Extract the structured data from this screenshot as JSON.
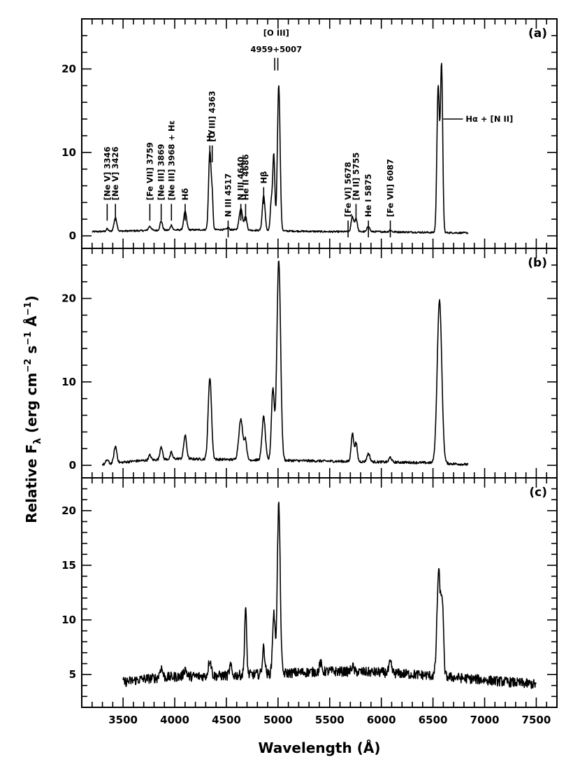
{
  "chart_data": {
    "type": "line",
    "xlabel": "Wavelength (Å)",
    "ylabel": "Relative F_λ (erg cm^-2 s^-1 Å^-1)",
    "xlim": [
      3100,
      7700
    ],
    "x_ticks": [
      3500,
      4000,
      4500,
      5000,
      5500,
      6000,
      6500,
      7000,
      7500
    ],
    "x_tick_labels": [
      "3500",
      "4000",
      "4500",
      "5000",
      "5500",
      "6000",
      "6500",
      "7000",
      "7500"
    ],
    "panels": [
      {
        "label": "(a)",
        "ylim": [
          -1.5,
          26
        ],
        "y_ticks": [
          0,
          10,
          20
        ],
        "y_tick_labels": [
          "0",
          "10",
          "20"
        ],
        "continuum": [
          [
            3200,
            0.5
          ],
          [
            3600,
            0.6
          ],
          [
            4000,
            0.7
          ],
          [
            4500,
            0.75
          ],
          [
            5000,
            0.6
          ],
          [
            5500,
            0.5
          ],
          [
            6000,
            0.5
          ],
          [
            6500,
            0.4
          ],
          [
            6840,
            0.35
          ]
        ],
        "x_end": 6840,
        "noise": 0.1,
        "lines": [
          {
            "x": 3346,
            "h": 0.3,
            "w": 10
          },
          {
            "x": 3426,
            "h": 1.6,
            "w": 14
          },
          {
            "x": 3759,
            "h": 0.5,
            "w": 14
          },
          {
            "x": 3869,
            "h": 1.1,
            "w": 12
          },
          {
            "x": 3968,
            "h": 0.6,
            "w": 10
          },
          {
            "x": 4101,
            "h": 2.2,
            "w": 14
          },
          {
            "x": 4340,
            "h": 9.5,
            "w": 12
          },
          {
            "x": 4363,
            "h": 3.5,
            "w": 8
          },
          {
            "x": 4517,
            "h": 0.25,
            "w": 10
          },
          {
            "x": 4640,
            "h": 2.6,
            "w": 16
          },
          {
            "x": 4686,
            "h": 1.6,
            "w": 12
          },
          {
            "x": 4861,
            "h": 4.2,
            "w": 13
          },
          {
            "x": 4935,
            "h": 3.5,
            "w": 10
          },
          {
            "x": 4959,
            "h": 9.0,
            "w": 10
          },
          {
            "x": 5007,
            "h": 17.5,
            "w": 13
          },
          {
            "x": 5720,
            "h": 1.8,
            "w": 12
          },
          {
            "x": 5755,
            "h": 1.6,
            "w": 12
          },
          {
            "x": 5875,
            "h": 0.7,
            "w": 12
          },
          {
            "x": 6087,
            "h": 0.25,
            "w": 10
          },
          {
            "x": 6550,
            "h": 17.5,
            "w": 12
          },
          {
            "x": 6583,
            "h": 20.0,
            "w": 11
          }
        ]
      },
      {
        "label": "(b)",
        "ylim": [
          -1.5,
          26
        ],
        "y_ticks": [
          0,
          10,
          20
        ],
        "y_tick_labels": [
          "0",
          "10",
          "20"
        ],
        "continuum": [
          [
            3300,
            0.1
          ],
          [
            3600,
            0.5
          ],
          [
            4000,
            0.8
          ],
          [
            4500,
            0.7
          ],
          [
            5000,
            0.6
          ],
          [
            5500,
            0.5
          ],
          [
            6000,
            0.4
          ],
          [
            6500,
            0.3
          ],
          [
            6840,
            0.1
          ]
        ],
        "x_end": 6840,
        "noise": 0.15,
        "lines": [
          {
            "x": 3346,
            "h": 0.5,
            "w": 12
          },
          {
            "x": 3426,
            "h": 2.0,
            "w": 14
          },
          {
            "x": 3759,
            "h": 0.6,
            "w": 12
          },
          {
            "x": 3869,
            "h": 1.6,
            "w": 12
          },
          {
            "x": 3968,
            "h": 0.8,
            "w": 10
          },
          {
            "x": 4101,
            "h": 2.8,
            "w": 14
          },
          {
            "x": 4340,
            "h": 9.8,
            "w": 16
          },
          {
            "x": 4640,
            "h": 4.8,
            "w": 20
          },
          {
            "x": 4686,
            "h": 2.2,
            "w": 12
          },
          {
            "x": 4861,
            "h": 5.2,
            "w": 16
          },
          {
            "x": 4950,
            "h": 8.5,
            "w": 14
          },
          {
            "x": 5007,
            "h": 24.0,
            "w": 18
          },
          {
            "x": 5720,
            "h": 3.4,
            "w": 12
          },
          {
            "x": 5755,
            "h": 2.2,
            "w": 12
          },
          {
            "x": 5875,
            "h": 1.0,
            "w": 14
          },
          {
            "x": 6087,
            "h": 0.6,
            "w": 12
          },
          {
            "x": 6563,
            "h": 19.5,
            "w": 22
          }
        ]
      },
      {
        "label": "(c)",
        "ylim": [
          2,
          23
        ],
        "y_ticks": [
          5,
          10,
          15,
          20
        ],
        "y_tick_labels": [
          "5",
          "10",
          "15",
          "20"
        ],
        "continuum": [
          [
            3500,
            4.3
          ],
          [
            3700,
            4.6
          ],
          [
            4000,
            4.8
          ],
          [
            4500,
            4.9
          ],
          [
            5000,
            5.1
          ],
          [
            5500,
            5.3
          ],
          [
            6000,
            5.2
          ],
          [
            6500,
            4.9
          ],
          [
            7000,
            4.5
          ],
          [
            7500,
            4.1
          ]
        ],
        "x_end": 7500,
        "noise": 0.45,
        "lines": [
          {
            "x": 3869,
            "h": 0.9,
            "w": 14
          },
          {
            "x": 4101,
            "h": 0.7,
            "w": 14
          },
          {
            "x": 4340,
            "h": 1.5,
            "w": 14
          },
          {
            "x": 4540,
            "h": 0.9,
            "w": 10
          },
          {
            "x": 4686,
            "h": 6.0,
            "w": 10
          },
          {
            "x": 4861,
            "h": 2.4,
            "w": 12
          },
          {
            "x": 4959,
            "h": 5.5,
            "w": 12
          },
          {
            "x": 5007,
            "h": 15.5,
            "w": 14
          },
          {
            "x": 5411,
            "h": 0.8,
            "w": 10
          },
          {
            "x": 5720,
            "h": 0.5,
            "w": 12
          },
          {
            "x": 6087,
            "h": 0.9,
            "w": 12
          },
          {
            "x": 6555,
            "h": 9.5,
            "w": 16
          },
          {
            "x": 6590,
            "h": 6.5,
            "w": 12
          }
        ]
      }
    ],
    "annotations": [
      {
        "text": "[Ne V] 3346",
        "x": 3346,
        "y": 4
      },
      {
        "text": "[Ne V] 3426",
        "x": 3426,
        "y": 4
      },
      {
        "text": "[Fe VII] 3759",
        "x": 3759,
        "y": 4
      },
      {
        "text": "[Ne III] 3869",
        "x": 3869,
        "y": 4
      },
      {
        "text": "[Ne III] 3968 + Hε",
        "x": 3968,
        "y": 4
      },
      {
        "text": "Hδ",
        "x": 4101,
        "y": 4
      },
      {
        "text": "Hγ",
        "x": 4340,
        "y": 11
      },
      {
        "text": "[O III] 4363",
        "x": 4363,
        "y": 11
      },
      {
        "text": "N III 4517",
        "x": 4517,
        "y": 2
      },
      {
        "text": "N III 4640",
        "x": 4640,
        "y": 4
      },
      {
        "text": "He II 4686",
        "x": 4686,
        "y": 4
      },
      {
        "text": "Hβ",
        "x": 4861,
        "y": 6
      },
      {
        "text": "[O III]",
        "x": 4983,
        "y": 24
      },
      {
        "text": "4959+5007",
        "x": 4983,
        "y": 22
      },
      {
        "text": "[Fe VI] 5678",
        "x": 5678,
        "y": 2
      },
      {
        "text": "[N II] 5755",
        "x": 5755,
        "y": 4
      },
      {
        "text": "He I 5875",
        "x": 5875,
        "y": 2
      },
      {
        "text": "[Fe VII] 6087",
        "x": 6087,
        "y": 2
      },
      {
        "text": "Hα + [N II]",
        "x": 6600,
        "y": 14
      }
    ]
  }
}
